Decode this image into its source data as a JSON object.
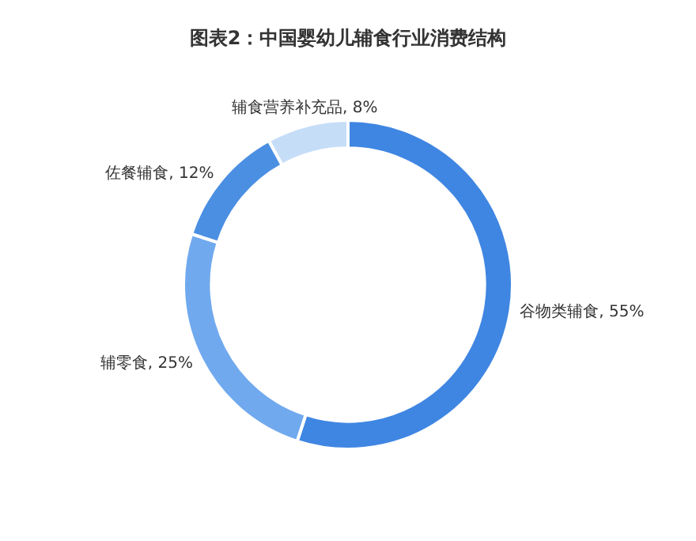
{
  "chart_data": {
    "type": "donut",
    "title": "图表2：中国婴幼儿辅食行业消费结构",
    "categories": [
      "谷物类辅食",
      "辅零食",
      "佐餐辅食",
      "辅食营养补充品"
    ],
    "values": [
      55,
      25,
      12,
      8
    ],
    "value_labels": [
      "55%",
      "25%",
      "12%",
      "8%"
    ],
    "colors": [
      "#3f86e2",
      "#70a9ee",
      "#4b8fe3",
      "#c6ddf8"
    ],
    "legend": false
  }
}
